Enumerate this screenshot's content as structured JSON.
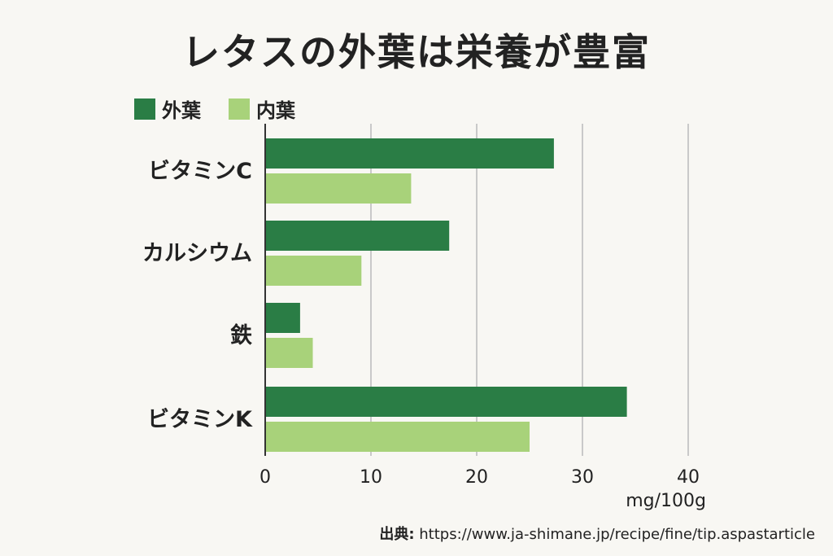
{
  "title": "レタスの外葉は栄養が豊富",
  "colors": {
    "outer": "#2a7d45",
    "inner": "#a8d27a",
    "grid": "#c9c9c9",
    "axis": "#333333"
  },
  "chart_data": {
    "type": "bar",
    "orientation": "horizontal",
    "title": "レタスの外葉は栄養が豊富",
    "categories": [
      "ビタミンC",
      "カルシウム",
      "鉄",
      "ビタミンK"
    ],
    "series": [
      {
        "name": "外葉",
        "values": [
          27.3,
          17.4,
          3.3,
          34.2
        ]
      },
      {
        "name": "内葉",
        "values": [
          13.8,
          9.1,
          4.5,
          25.0
        ]
      }
    ],
    "xlim": [
      0,
      40
    ],
    "xticks": [
      "0",
      "10",
      "20",
      "30",
      "40"
    ],
    "unit_label": "mg/100g",
    "grid": true,
    "legend_position": "top-left"
  },
  "source": {
    "label": "出典:",
    "text": "https://www.ja-shimane.jp/recipe/fine/tip.aspastarticle"
  }
}
